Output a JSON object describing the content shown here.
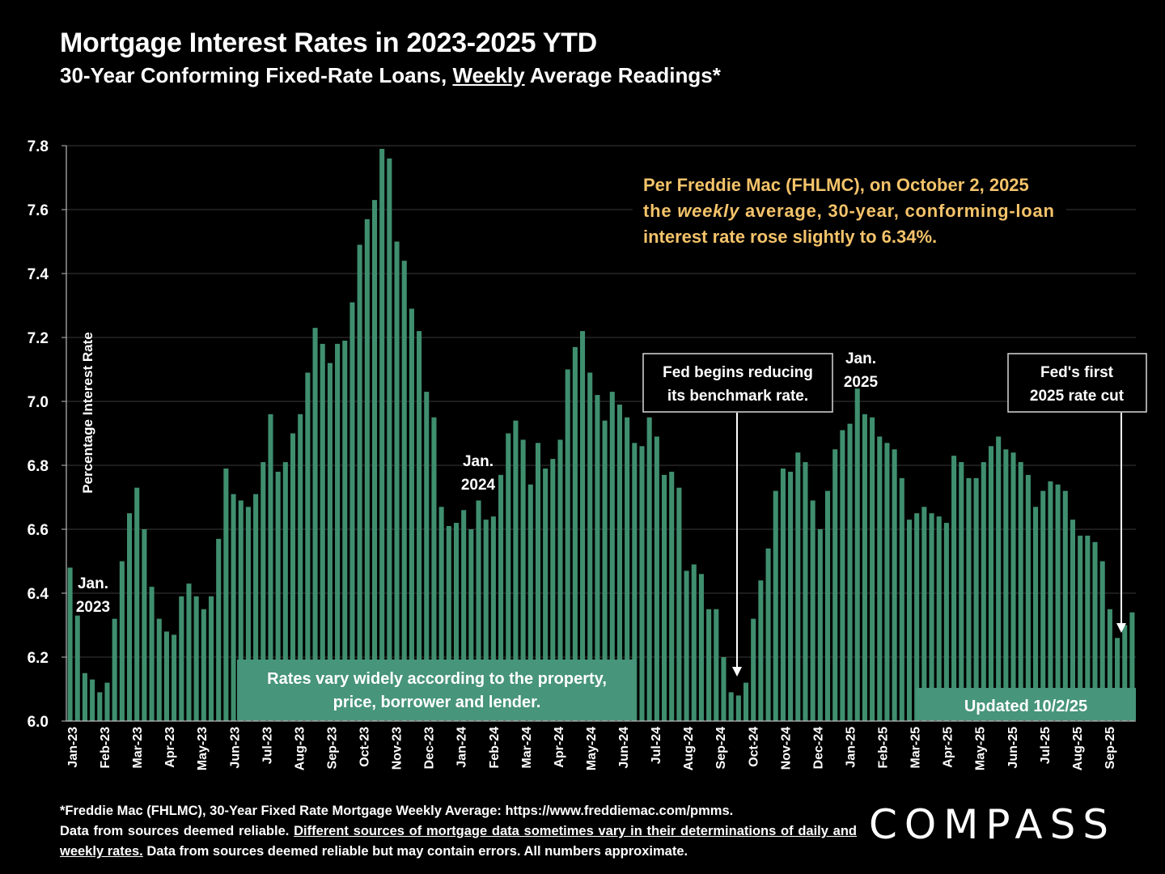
{
  "title": "Mortgage Interest Rates in 2023-2025 YTD",
  "subtitle": {
    "before": "30-Year Conforming Fixed-Rate Loans, ",
    "underlined": "Weekly",
    "after": " Average Readings*"
  },
  "colors": {
    "background": "#000000",
    "bar": "#3f8f6f",
    "banner": "#47957a",
    "callout_text": "#f4c36a",
    "grid": "#3a3a3a",
    "text": "#ffffff"
  },
  "chart_data": {
    "type": "bar",
    "ylabel": "Percentage Interest  Rate",
    "ylim": [
      6.0,
      7.8
    ],
    "yticks": [
      "6.0",
      "6.2",
      "6.4",
      "6.6",
      "6.8",
      "7.0",
      "7.2",
      "7.4",
      "7.6",
      "7.8"
    ],
    "grid": true,
    "x_tick_labels": [
      "Jan-23",
      "Feb-23",
      "Mar-23",
      "Apr-23",
      "May-23",
      "Jun-23",
      "Jul-23",
      "Aug-23",
      "Sep-23",
      "Oct-23",
      "Nov-23",
      "Dec-23",
      "Jan-24",
      "Feb-24",
      "Mar-24",
      "Apr-24",
      "May-24",
      "Jun-24",
      "Jul-24",
      "Aug-24",
      "Sep-24",
      "Oct-24",
      "Nov-24",
      "Dec-24",
      "Jan-25",
      "Feb-25",
      "Mar-25",
      "Apr-25",
      "May-25",
      "Jun-25",
      "Jul-25",
      "Aug-25",
      "Sep-25"
    ],
    "series": [
      {
        "values": [
          6.48,
          6.33,
          6.15,
          6.13,
          6.09,
          6.12,
          6.32,
          6.5,
          6.65,
          6.73,
          6.6,
          6.42,
          6.32,
          6.28,
          6.27,
          6.39,
          6.43,
          6.39,
          6.35,
          6.39,
          6.57,
          6.79,
          6.71,
          6.69,
          6.67,
          6.71,
          6.81,
          6.96,
          6.78,
          6.81,
          6.9,
          6.96,
          7.09,
          7.23,
          7.18,
          7.12,
          7.18,
          7.19,
          7.31,
          7.49,
          7.57,
          7.63,
          7.79,
          7.76,
          7.5,
          7.44,
          7.29,
          7.22,
          7.03,
          6.95,
          6.67,
          6.61,
          6.62,
          6.66,
          6.6,
          6.69,
          6.63,
          6.64,
          6.77,
          6.9,
          6.94,
          6.88,
          6.74,
          6.87,
          6.79,
          6.82,
          6.88,
          7.1,
          7.17,
          7.22,
          7.09,
          7.02,
          6.94,
          7.03,
          6.99,
          6.95,
          6.87,
          6.86,
          6.95,
          6.89,
          6.77,
          6.78,
          6.73,
          6.47,
          6.49,
          6.46,
          6.35,
          6.35,
          6.2,
          6.09,
          6.08,
          6.12,
          6.32,
          6.44,
          6.54,
          6.72,
          6.79,
          6.78,
          6.84,
          6.81,
          6.69,
          6.6,
          6.72,
          6.85,
          6.91,
          6.93,
          7.04,
          6.96,
          6.95,
          6.89,
          6.87,
          6.85,
          6.76,
          6.63,
          6.65,
          6.67,
          6.65,
          6.64,
          6.62,
          6.83,
          6.81,
          6.76,
          6.76,
          6.81,
          6.86,
          6.89,
          6.85,
          6.84,
          6.81,
          6.77,
          6.67,
          6.72,
          6.75,
          6.74,
          6.72,
          6.63,
          6.58,
          6.58,
          6.56,
          6.5,
          6.35,
          6.26,
          6.3,
          6.34
        ]
      }
    ],
    "annotations": {
      "jan_2023": [
        "Jan.",
        "2023"
      ],
      "jan_2024": [
        "Jan.",
        "2024"
      ],
      "jan_2025": [
        "Jan.",
        "2025"
      ],
      "fed_begins": [
        "Fed begins reducing",
        "its benchmark rate."
      ],
      "fed_first_cut": [
        "Fed's first",
        "2025 rate cut"
      ],
      "rates_vary": [
        "Rates vary widely according to the property,",
        "price, borrower and lender."
      ],
      "updated": "Updated 10/2/25",
      "freddie_note": [
        "Per Freddie Mac (FHLMC), on October 2, 2025",
        "the weekly average, 30-year, conforming-loan",
        "interest rate rose slightly to 6.34%."
      ]
    }
  },
  "footnote": {
    "line1": "*Freddie Mac (FHLMC), 30-Year Fixed Rate Mortgage Weekly Average:  https://www.freddiemac.com/pmms.",
    "line2_plain": "Data from sources deemed reliable. ",
    "line2_underlined": "Different sources of mortgage data sometimes vary in their determinations of daily and weekly rates.",
    "line3_plain": " Data from sources deemed reliable but may contain errors. All numbers approximate."
  },
  "brand": "COMPASS"
}
